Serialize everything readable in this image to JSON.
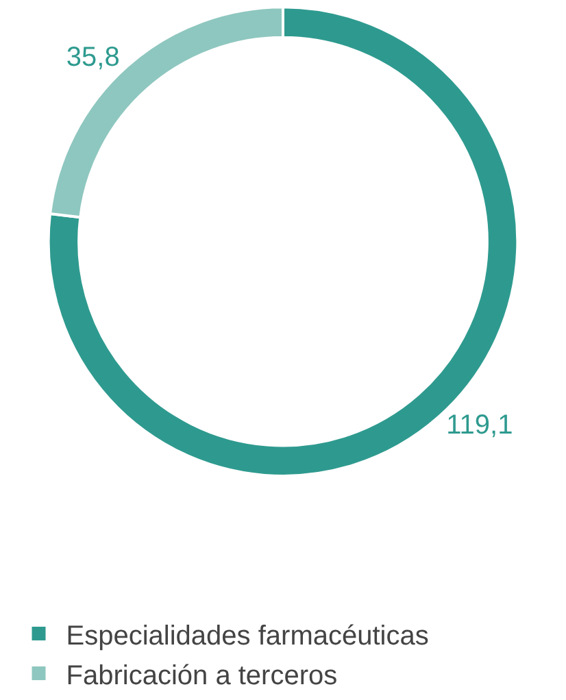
{
  "chart_data": {
    "type": "donut",
    "categories": [
      "Especialidades farmacéuticas",
      "Fabricación a terceros"
    ],
    "values": [
      119.1,
      35.8
    ],
    "value_labels": [
      "119,1",
      "35,8"
    ],
    "colors": [
      "#2e9a8f",
      "#8ec7bf"
    ],
    "legend": "bottom"
  }
}
